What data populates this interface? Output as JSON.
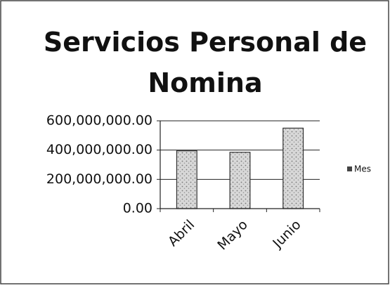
{
  "chart_data": {
    "type": "bar",
    "title": "Servicios Personal de Nomina",
    "categories": [
      "Abril",
      "Mayo",
      "Junio"
    ],
    "series": [
      {
        "name": "Mes",
        "color": "#a8a8a8",
        "values": [
          395000000,
          385000000,
          550000000
        ]
      }
    ],
    "ylim": [
      0,
      600000000
    ],
    "yticks": [
      {
        "value": 0,
        "label": "0.00"
      },
      {
        "value": 200000000,
        "label": "200,000,000.00"
      },
      {
        "value": 400000000,
        "label": "400,000,000.00"
      },
      {
        "value": 600000000,
        "label": "600,000,000.00"
      }
    ],
    "grid": true,
    "legend": "right"
  }
}
